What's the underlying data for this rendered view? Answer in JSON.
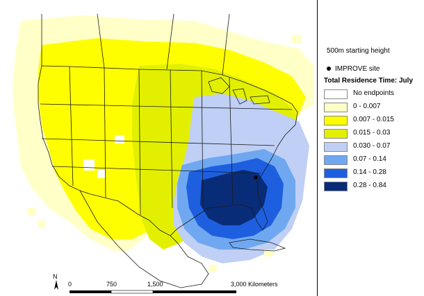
{
  "legend": {
    "subtitle": "500m starting height",
    "site_label": "IMPROVE site",
    "title": "Total Residence Time: July",
    "items": [
      {
        "label": "No endpoints",
        "color": "#ffffff"
      },
      {
        "label": "0 - 0.007",
        "color": "#ffffc8"
      },
      {
        "label": "0.007 - 0.015",
        "color": "#fefe00"
      },
      {
        "label": "0.015 - 0.03",
        "color": "#e2f000"
      },
      {
        "label": "0.030 - 0.07",
        "color": "#bfcff5"
      },
      {
        "label": "0.07 - 0.14",
        "color": "#6fa8f0"
      },
      {
        "label": "0.14 - 0.28",
        "color": "#1e5fe0"
      },
      {
        "label": "0.28 - 0.84",
        "color": "#082c78"
      }
    ]
  },
  "scalebar": {
    "ticks": [
      "0",
      "750",
      "1,500",
      "3,000 Kilometers"
    ],
    "north_label": "N"
  },
  "icons": {
    "north_arrow": "north-arrow-icon",
    "site_marker": "site-dot-icon"
  }
}
